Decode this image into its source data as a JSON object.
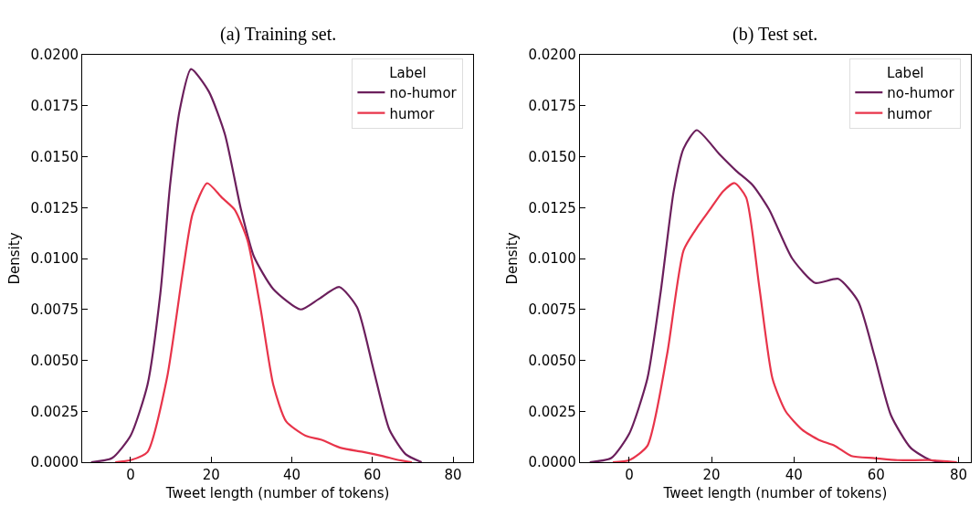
{
  "chart_data": [
    {
      "type": "line",
      "title": "(a) Training set.",
      "xlabel": "Tweet length (number of tokens)",
      "ylabel": "Density",
      "legend_title": "Label",
      "legend": "top right",
      "grid": false,
      "marker": "none",
      "line_style": "solid",
      "xlim": [
        -12,
        85
      ],
      "ylim": [
        0,
        0.02
      ],
      "xticks": [
        0,
        20,
        40,
        60,
        80
      ],
      "yticks": [
        {
          "value": 0,
          "label": "0.0000"
        },
        {
          "value": 0.0025,
          "label": "0.0025"
        },
        {
          "value": 0.005,
          "label": "0.0050"
        },
        {
          "value": 0.0075,
          "label": "0.0075"
        },
        {
          "value": 0.01,
          "label": "0.0100"
        },
        {
          "value": 0.0125,
          "label": "0.0125"
        },
        {
          "value": 0.015,
          "label": "0.0150"
        },
        {
          "value": 0.0175,
          "label": "0.0175"
        },
        {
          "value": 0.02,
          "label": "0.0200"
        }
      ],
      "series": [
        {
          "name": "no-humor",
          "color": "#6b1f5c",
          "x": [
            -9.8,
            -4.6,
            0,
            4.2,
            7.4,
            9.8,
            12.2,
            15,
            19.4,
            23.4,
            27.4,
            30.6,
            35.4,
            42.2,
            46.6,
            51.8,
            56.2,
            60.2,
            64.2,
            68.2,
            72.2
          ],
          "values": [
            0,
            0.0002,
            0.0013,
            0.0038,
            0.0083,
            0.0136,
            0.0173,
            0.0193,
            0.0182,
            0.0161,
            0.0124,
            0.0101,
            0.0085,
            0.0075,
            0.008,
            0.0086,
            0.0076,
            0.0046,
            0.0016,
            0.0004,
            0
          ]
        },
        {
          "name": "humor",
          "color": "#e8344a",
          "x": [
            -3.8,
            0,
            4.2,
            9,
            13,
            15.4,
            19,
            22.6,
            25.8,
            29,
            32.2,
            35.4,
            38.6,
            43.4,
            47.4,
            52.2,
            57.8,
            62.6,
            66.6,
            69.8
          ],
          "values": [
            0,
            0.0001,
            0.0005,
            0.0041,
            0.0094,
            0.0122,
            0.0137,
            0.013,
            0.0124,
            0.0109,
            0.0076,
            0.0038,
            0.002,
            0.0013,
            0.0011,
            0.0007,
            0.0005,
            0.0003,
            0.0001,
            0
          ]
        }
      ]
    },
    {
      "type": "line",
      "title": "(b) Test set.",
      "xlabel": "Tweet length (number of tokens)",
      "ylabel": "Density",
      "legend_title": "Label",
      "legend": "top right",
      "grid": false,
      "marker": "none",
      "line_style": "solid",
      "xlim": [
        -12,
        83
      ],
      "ylim": [
        0,
        0.02
      ],
      "xticks": [
        0,
        20,
        40,
        60,
        80
      ],
      "yticks": [
        {
          "value": 0,
          "label": "0.0000"
        },
        {
          "value": 0.0025,
          "label": "0.0025"
        },
        {
          "value": 0.005,
          "label": "0.0050"
        },
        {
          "value": 0.0075,
          "label": "0.0075"
        },
        {
          "value": 0.01,
          "label": "0.0100"
        },
        {
          "value": 0.0125,
          "label": "0.0125"
        },
        {
          "value": 0.015,
          "label": "0.0150"
        },
        {
          "value": 0.0175,
          "label": "0.0175"
        },
        {
          "value": 0.02,
          "label": "0.0200"
        }
      ],
      "series": [
        {
          "name": "no-humor",
          "color": "#6b1f5c",
          "x": [
            -9.6,
            -4.4,
            0,
            4.4,
            7.6,
            10.8,
            13.2,
            16.4,
            22,
            26,
            30,
            34,
            39.6,
            45.2,
            50.8,
            55.6,
            59.6,
            63.6,
            68.4,
            73.2,
            76.4
          ],
          "values": [
            0,
            0.0002,
            0.0014,
            0.0041,
            0.0083,
            0.0133,
            0.0154,
            0.0163,
            0.0151,
            0.0143,
            0.0136,
            0.0124,
            0.01,
            0.0088,
            0.009,
            0.0079,
            0.0052,
            0.0023,
            0.0007,
            0.0001,
            0
          ]
        },
        {
          "name": "humor",
          "color": "#e8344a",
          "x": [
            -4,
            0,
            4.4,
            9.2,
            13.2,
            16.4,
            19.6,
            22.8,
            25.6,
            28.4,
            31.6,
            34.8,
            38,
            42,
            46,
            50,
            54,
            59.6,
            65.2,
            73.2,
            79.6
          ],
          "values": [
            0,
            0.0001,
            0.0008,
            0.0053,
            0.0104,
            0.0115,
            0.0124,
            0.0133,
            0.0137,
            0.013,
            0.0086,
            0.0041,
            0.0025,
            0.0016,
            0.0011,
            0.0008,
            0.0003,
            0.0002,
            0.0001,
            0.0001,
            0
          ]
        }
      ]
    }
  ]
}
